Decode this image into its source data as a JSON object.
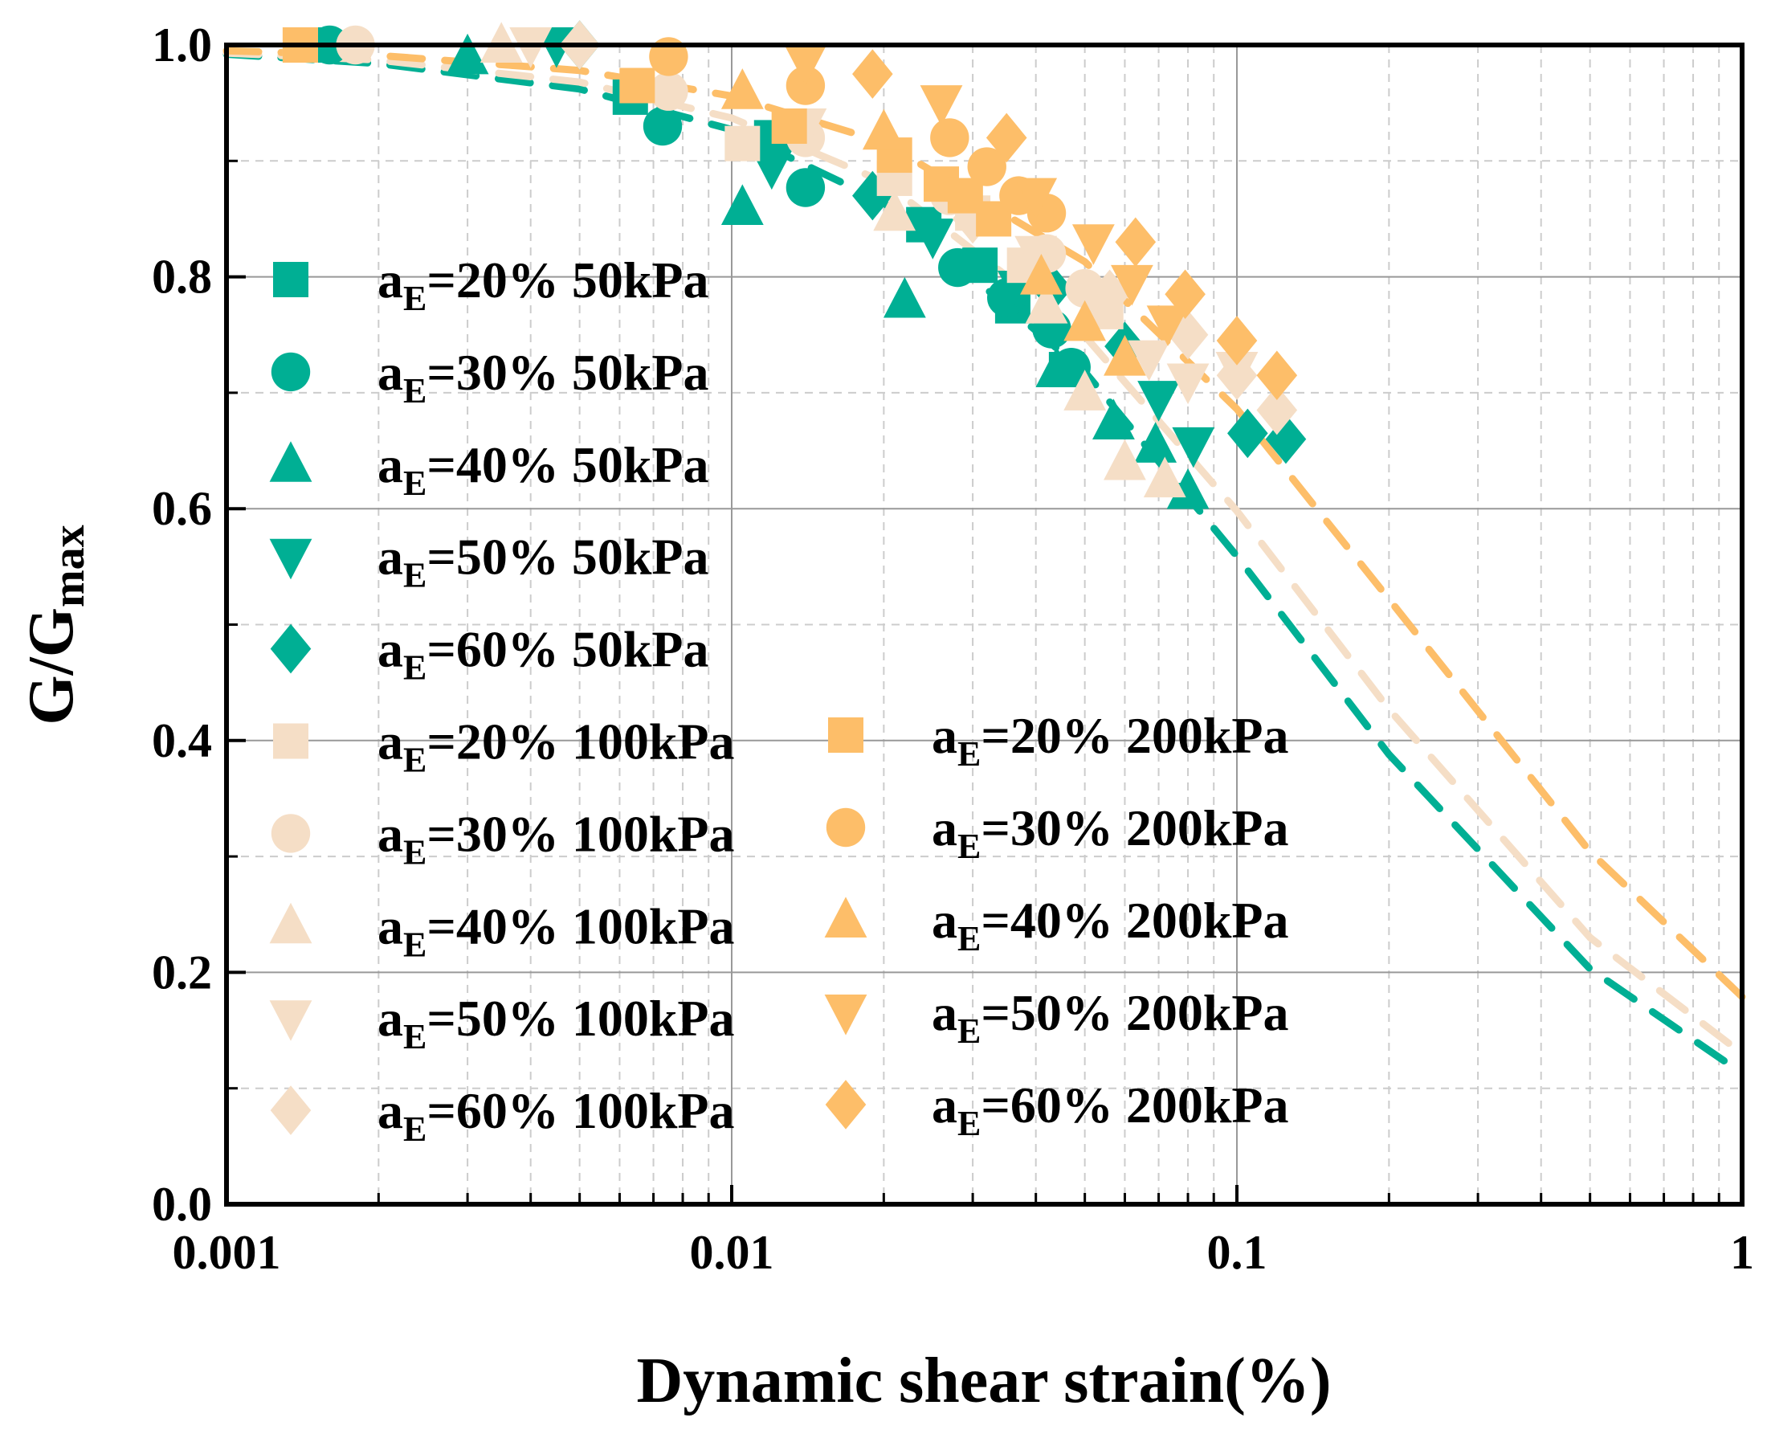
{
  "chart_data": {
    "type": "scatter",
    "xlabel": "Dynamic shear strain(%)",
    "ylabel": {
      "main": "G/G",
      "sub": "max"
    },
    "xscale": "log",
    "xlim": [
      0.001,
      1
    ],
    "ylim": [
      0,
      1.0
    ],
    "xticks": [
      {
        "v": 0.001,
        "label": "0.001"
      },
      {
        "v": 0.01,
        "label": "0.01"
      },
      {
        "v": 0.1,
        "label": "0.1"
      },
      {
        "v": 1,
        "label": "1"
      }
    ],
    "yticks": [
      {
        "v": 0,
        "label": "0.0"
      },
      {
        "v": 0.2,
        "label": "0.2"
      },
      {
        "v": 0.4,
        "label": "0.4"
      },
      {
        "v": 0.6,
        "label": "0.6"
      },
      {
        "v": 0.8,
        "label": "0.8"
      },
      {
        "v": 1.0,
        "label": "1.0"
      }
    ],
    "grid": true,
    "legend_placement": "center-left, two columns",
    "colors": {
      "50kPa": "#00AF94",
      "100kPa": "#F5DEC6",
      "200kPa": "#FDBE69"
    },
    "fit_curves": [
      {
        "group": "50kPa",
        "color": "#00AF94",
        "x": [
          0.001,
          0.002,
          0.005,
          0.01,
          0.02,
          0.05,
          0.1,
          0.2,
          0.5,
          1
        ],
        "y": [
          0.992,
          0.984,
          0.962,
          0.927,
          0.864,
          0.718,
          0.559,
          0.388,
          0.203,
          0.113
        ]
      },
      {
        "group": "100kPa",
        "color": "#F5DEC6",
        "x": [
          0.001,
          0.002,
          0.005,
          0.01,
          0.02,
          0.05,
          0.1,
          0.2,
          0.5,
          1
        ],
        "y": [
          0.993,
          0.987,
          0.968,
          0.937,
          0.882,
          0.749,
          0.598,
          0.427,
          0.23,
          0.13
        ]
      },
      {
        "group": "200kPa",
        "color": "#FDBE69",
        "x": [
          0.001,
          0.002,
          0.005,
          0.01,
          0.02,
          0.05,
          0.1,
          0.2,
          0.5,
          1
        ],
        "y": [
          0.995,
          0.991,
          0.978,
          0.956,
          0.916,
          0.813,
          0.686,
          0.522,
          0.304,
          0.179
        ]
      }
    ],
    "series": [
      {
        "name": "aE=20% 50kPa",
        "marker": "square",
        "color": "#00AF94",
        "points": [
          [
            0.0015,
            1.0
          ],
          [
            0.0063,
            0.955
          ],
          [
            0.012,
            0.92
          ],
          [
            0.024,
            0.845
          ],
          [
            0.031,
            0.81
          ],
          [
            0.036,
            0.775
          ],
          [
            0.046,
            0.72
          ]
        ]
      },
      {
        "name": "aE=30% 50kPa",
        "marker": "circle",
        "color": "#00AF94",
        "points": [
          [
            0.0016,
            1.0
          ],
          [
            0.0073,
            0.93
          ],
          [
            0.014,
            0.877
          ],
          [
            0.028,
            0.808
          ],
          [
            0.035,
            0.782
          ],
          [
            0.043,
            0.755
          ],
          [
            0.047,
            0.722
          ]
        ]
      },
      {
        "name": "aE=40% 50kPa",
        "marker": "triangle-up",
        "color": "#00AF94",
        "points": [
          [
            0.003,
            0.99
          ],
          [
            0.0105,
            0.86
          ],
          [
            0.022,
            0.78
          ],
          [
            0.044,
            0.72
          ],
          [
            0.057,
            0.675
          ],
          [
            0.069,
            0.655
          ],
          [
            0.08,
            0.615
          ]
        ]
      },
      {
        "name": "aE=50% 50kPa",
        "marker": "triangle-down",
        "color": "#00AF94",
        "points": [
          [
            0.0045,
            1.0
          ],
          [
            0.012,
            0.895
          ],
          [
            0.025,
            0.835
          ],
          [
            0.037,
            0.79
          ],
          [
            0.07,
            0.695
          ],
          [
            0.082,
            0.655
          ]
        ]
      },
      {
        "name": "aE=60% 50kPa",
        "marker": "diamond",
        "color": "#00AF94",
        "points": [
          [
            0.005,
            1.0
          ],
          [
            0.019,
            0.87
          ],
          [
            0.043,
            0.79
          ],
          [
            0.06,
            0.74
          ],
          [
            0.105,
            0.665
          ],
          [
            0.125,
            0.66
          ]
        ]
      },
      {
        "name": "aE=20% 100kPa",
        "marker": "square",
        "color": "#F5DEC6",
        "points": [
          [
            0.0014,
            1.0
          ],
          [
            0.0105,
            0.915
          ],
          [
            0.021,
            0.885
          ],
          [
            0.03,
            0.855
          ],
          [
            0.038,
            0.81
          ],
          [
            0.055,
            0.77
          ]
        ]
      },
      {
        "name": "aE=30% 100kPa",
        "marker": "circle",
        "color": "#F5DEC6",
        "points": [
          [
            0.0018,
            1.0
          ],
          [
            0.0075,
            0.96
          ],
          [
            0.014,
            0.92
          ],
          [
            0.027,
            0.87
          ],
          [
            0.042,
            0.82
          ],
          [
            0.05,
            0.79
          ]
        ]
      },
      {
        "name": "aE=40% 100kPa",
        "marker": "triangle-up",
        "color": "#F5DEC6",
        "points": [
          [
            0.0035,
            1.0
          ],
          [
            0.021,
            0.855
          ],
          [
            0.042,
            0.775
          ],
          [
            0.05,
            0.7
          ],
          [
            0.06,
            0.64
          ],
          [
            0.072,
            0.625
          ]
        ]
      },
      {
        "name": "aE=50% 100kPa",
        "marker": "triangle-down",
        "color": "#F5DEC6",
        "points": [
          [
            0.004,
            1.0
          ],
          [
            0.014,
            0.93
          ],
          [
            0.04,
            0.82
          ],
          [
            0.067,
            0.73
          ],
          [
            0.08,
            0.71
          ],
          [
            0.1,
            0.72
          ]
        ]
      },
      {
        "name": "aE=60% 100kPa",
        "marker": "diamond",
        "color": "#F5DEC6",
        "points": [
          [
            0.005,
            1.0
          ],
          [
            0.03,
            0.85
          ],
          [
            0.056,
            0.785
          ],
          [
            0.08,
            0.75
          ],
          [
            0.1,
            0.715
          ],
          [
            0.12,
            0.685
          ]
        ]
      },
      {
        "name": "aE=20% 200kPa",
        "marker": "square",
        "color": "#FDBE69",
        "points": [
          [
            0.0014,
            1.0
          ],
          [
            0.0065,
            0.965
          ],
          [
            0.013,
            0.93
          ],
          [
            0.021,
            0.905
          ],
          [
            0.026,
            0.88
          ],
          [
            0.029,
            0.87
          ],
          [
            0.033,
            0.85
          ]
        ]
      },
      {
        "name": "aE=30% 200kPa",
        "marker": "circle",
        "color": "#FDBE69",
        "points": [
          [
            0.0075,
            0.99
          ],
          [
            0.014,
            0.965
          ],
          [
            0.027,
            0.92
          ],
          [
            0.032,
            0.895
          ],
          [
            0.037,
            0.87
          ],
          [
            0.042,
            0.855
          ]
        ]
      },
      {
        "name": "aE=40% 200kPa",
        "marker": "triangle-up",
        "color": "#FDBE69",
        "points": [
          [
            0.0105,
            0.96
          ],
          [
            0.02,
            0.925
          ],
          [
            0.041,
            0.8
          ],
          [
            0.05,
            0.76
          ],
          [
            0.06,
            0.73
          ]
        ]
      },
      {
        "name": "aE=50% 200kPa",
        "marker": "triangle-down",
        "color": "#FDBE69",
        "points": [
          [
            0.014,
            0.985
          ],
          [
            0.026,
            0.95
          ],
          [
            0.04,
            0.87
          ],
          [
            0.052,
            0.83
          ],
          [
            0.062,
            0.795
          ],
          [
            0.073,
            0.76
          ]
        ]
      },
      {
        "name": "aE=60% 200kPa",
        "marker": "diamond",
        "color": "#FDBE69",
        "points": [
          [
            0.019,
            0.975
          ],
          [
            0.035,
            0.92
          ],
          [
            0.063,
            0.83
          ],
          [
            0.079,
            0.785
          ],
          [
            0.1,
            0.745
          ],
          [
            0.12,
            0.715
          ]
        ]
      }
    ]
  }
}
